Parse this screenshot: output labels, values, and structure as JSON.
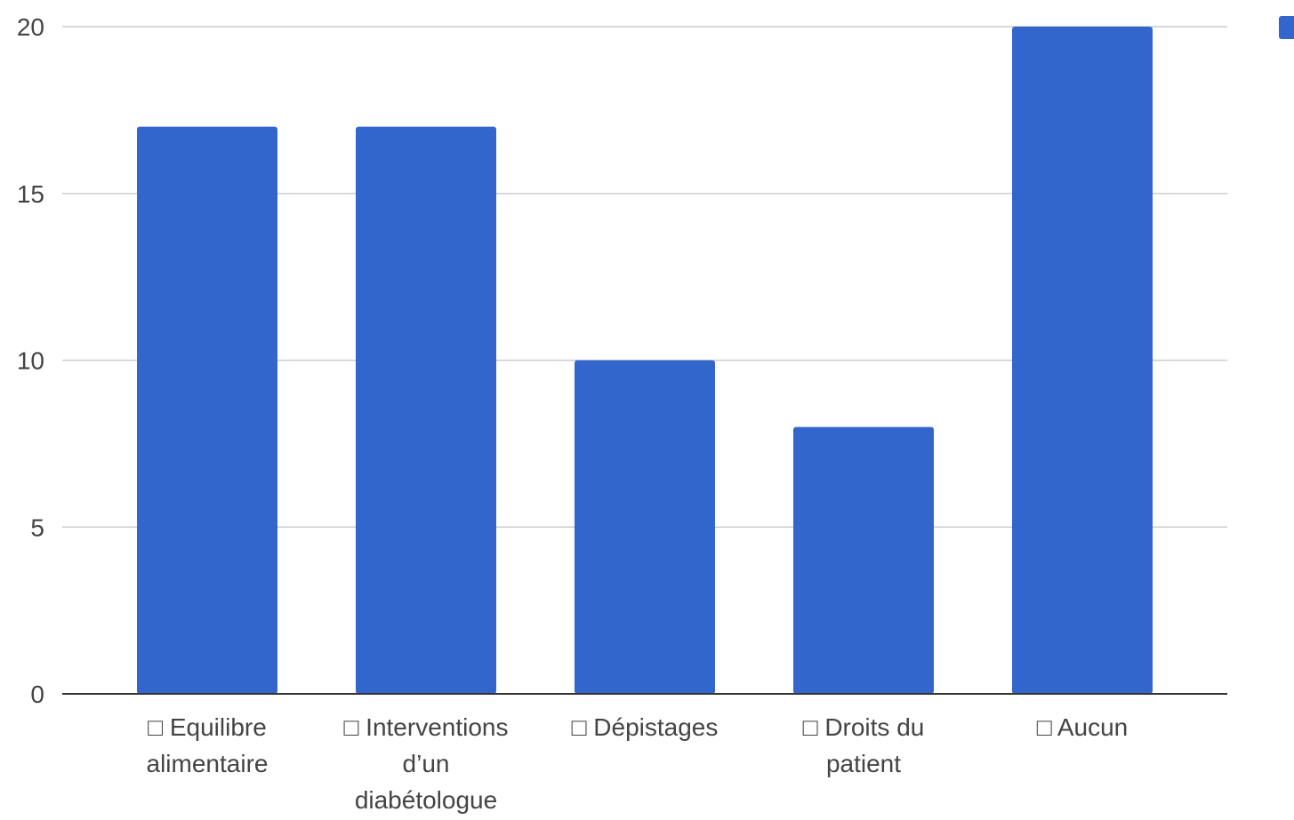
{
  "chart_data": {
    "type": "bar",
    "title": "",
    "xlabel": "",
    "ylabel": "",
    "categories": [
      [
        "□ Equilibre",
        "alimentaire"
      ],
      [
        "□ Interventions",
        "d’un",
        "diabétologue"
      ],
      [
        "□ Dépistages"
      ],
      [
        "□ Droits du",
        "patient"
      ],
      [
        "□ Aucun"
      ]
    ],
    "values": [
      17,
      17,
      10,
      8,
      20
    ],
    "ylim": [
      0,
      20
    ],
    "yticks": [
      0,
      5,
      10,
      15,
      20
    ],
    "grid": true,
    "legend": "right (clipped, swatch only)",
    "bar_color": "#3366cc",
    "grid_color": "#cccccc",
    "axis_color": "#333333"
  }
}
